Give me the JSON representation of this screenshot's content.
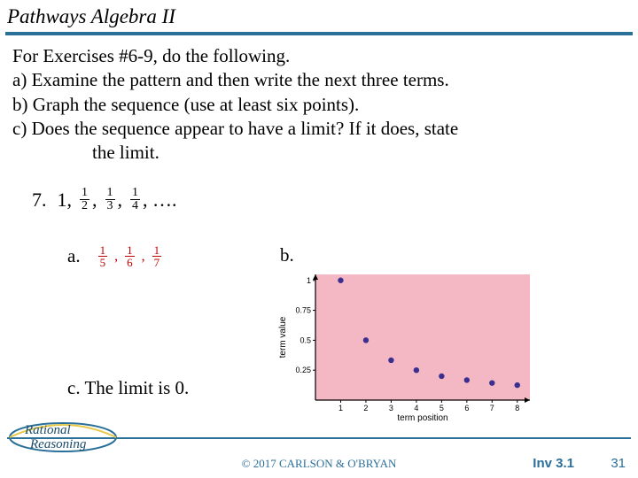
{
  "header": {
    "title": "Pathways Algebra II"
  },
  "instructions": {
    "lead": "For Exercises #6-9, do the following.",
    "a": "a)  Examine the pattern and then write the next three terms.",
    "b": "b)  Graph the sequence (use at least six points).",
    "c1": "c)  Does the sequence appear to have a limit? If it does, state",
    "c2": "the limit."
  },
  "problem": {
    "num": "7.",
    "first": "1,",
    "f1n": "1",
    "f1d": "2",
    "f2n": "1",
    "f2d": "3",
    "f3n": "1",
    "f3d": "4",
    "trail": ",  …."
  },
  "answers": {
    "a_label": "a.",
    "a_f1n": "1",
    "a_f1d": "5",
    "a_f2n": "1",
    "a_f2d": "6",
    "a_f3n": "1",
    "a_f3d": "7",
    "b_label": "b.",
    "c_text": "c.   The limit is 0."
  },
  "chart": {
    "bg": "#f4b7c4",
    "axis_color": "#000000",
    "point_color": "#3a2f8f",
    "ylabel": "term value",
    "xlabel": "term position",
    "yticks": [
      {
        "v": 1.0,
        "label": "1"
      },
      {
        "v": 0.75,
        "label": "0.75"
      },
      {
        "v": 0.5,
        "label": "0.5"
      },
      {
        "v": 0.25,
        "label": "0.25"
      }
    ],
    "xticks": [
      1,
      2,
      3,
      4,
      5,
      6,
      7,
      8
    ],
    "points": [
      {
        "x": 1,
        "y": 1.0
      },
      {
        "x": 2,
        "y": 0.5
      },
      {
        "x": 3,
        "y": 0.333
      },
      {
        "x": 4,
        "y": 0.25
      },
      {
        "x": 5,
        "y": 0.2
      },
      {
        "x": 6,
        "y": 0.167
      },
      {
        "x": 7,
        "y": 0.143
      },
      {
        "x": 8,
        "y": 0.125
      }
    ],
    "ylim": [
      0,
      1.05
    ],
    "xlim": [
      0,
      8.5
    ],
    "label_fontsize": 9
  },
  "footer": {
    "copyright": "© 2017 CARLSON & O'BRYAN",
    "inv": "Inv 3.1",
    "page": "31"
  },
  "logo": {
    "top": "Rational",
    "bottom": "Reasoning"
  }
}
